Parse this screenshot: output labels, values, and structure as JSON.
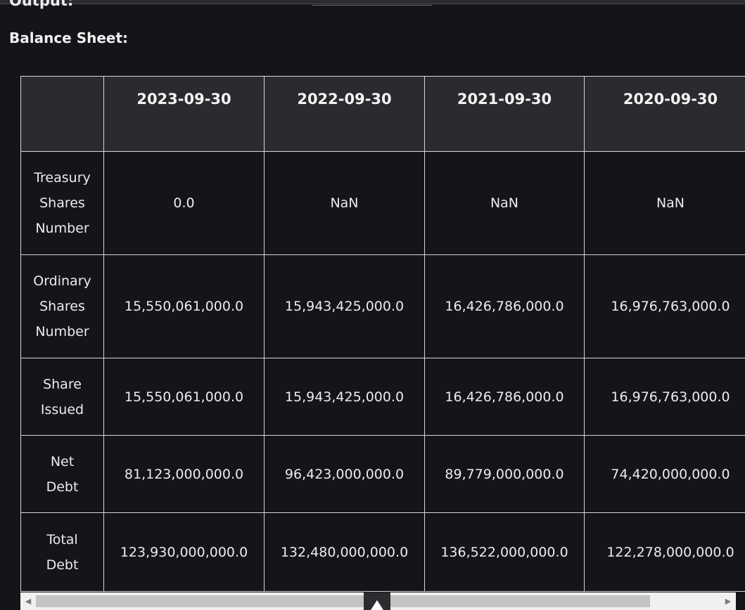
{
  "output_label": "Output:",
  "section_title": "Balance Sheet:",
  "table": {
    "columns": [
      "",
      "2023-09-30",
      "2022-09-30",
      "2021-09-30",
      "2020-09-30"
    ],
    "rows": [
      {
        "label": [
          "Treasury",
          "Shares",
          "Number"
        ],
        "values": [
          "0.0",
          "NaN",
          "NaN",
          "NaN"
        ],
        "height": 147
      },
      {
        "label": [
          "Ordinary",
          "Shares",
          "Number"
        ],
        "values": [
          "15,550,061,000.0",
          "15,943,425,000.0",
          "16,426,786,000.0",
          "16,976,763,000.0"
        ],
        "height": 147
      },
      {
        "label": [
          "Share",
          "Issued"
        ],
        "values": [
          "15,550,061,000.0",
          "15,943,425,000.0",
          "16,426,786,000.0",
          "16,976,763,000.0"
        ],
        "height": 110
      },
      {
        "label": [
          "Net",
          "Debt"
        ],
        "values": [
          "81,123,000,000.0",
          "96,423,000,000.0",
          "89,779,000,000.0",
          "74,420,000,000.0"
        ],
        "height": 110
      },
      {
        "label": [
          "Total",
          "Debt"
        ],
        "values": [
          "123,930,000,000.0",
          "132,480,000,000.0",
          "136,522,000,000.0",
          "122,278,000,000.0"
        ],
        "height": 112
      }
    ]
  },
  "scrollbar": {
    "left_arrow": "◀",
    "right_arrow": "▶"
  }
}
